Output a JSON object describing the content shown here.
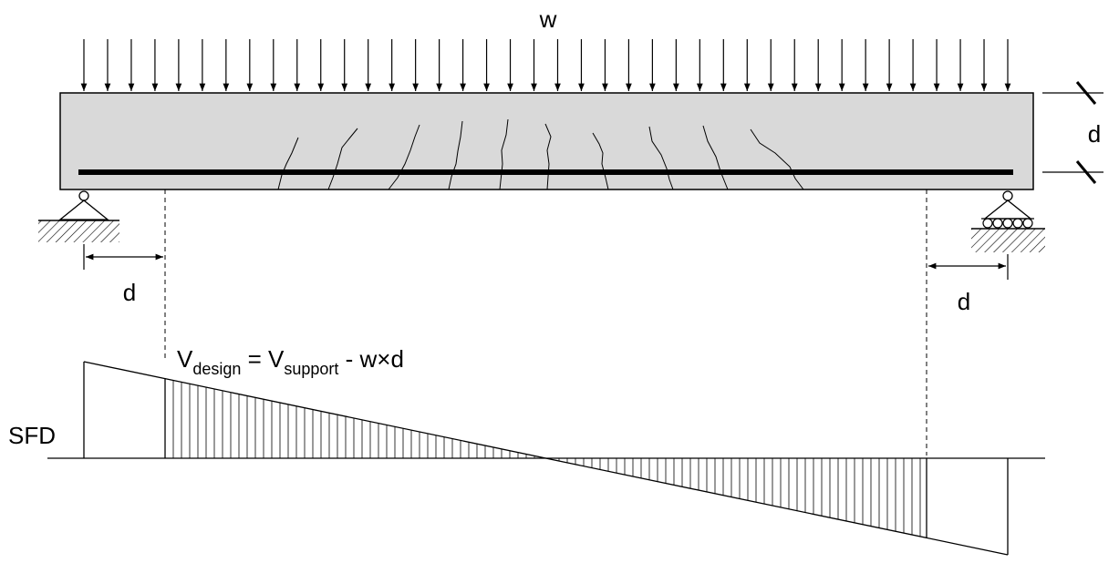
{
  "labels": {
    "load": "w",
    "depth_right": "d",
    "dist_left": "d",
    "dist_right": "d",
    "sfd": "SFD",
    "formula": {
      "v1": "V",
      "sub1": "design",
      "eq": " = V",
      "sub2": "support",
      "rest": " - w×d"
    }
  },
  "colors": {
    "beam_fill": "#d9d9d9",
    "line": "#000000",
    "background": "#ffffff"
  }
}
